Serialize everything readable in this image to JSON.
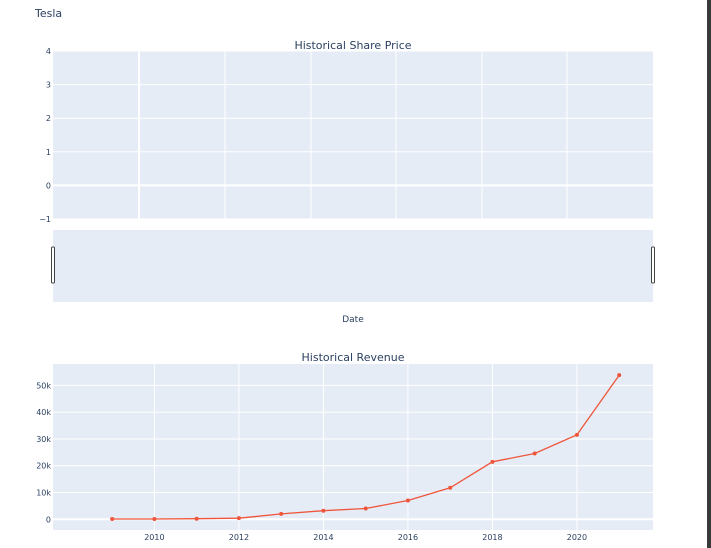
{
  "page": {
    "title": "Tesla"
  },
  "colors": {
    "plot_bg": "#e5ecf6",
    "grid": "#ffffff",
    "series": "#ef553b",
    "text": "#2a3f5f"
  },
  "chart_data": [
    {
      "type": "line",
      "title": "Historical Share Price",
      "xlabel": "Date",
      "ylabel": "",
      "ylim": [
        -1,
        4
      ],
      "yticks": [
        4,
        3,
        2,
        1,
        0
      ],
      "ytick_neg_label": "−1",
      "x": [],
      "series": [],
      "range_slider": true,
      "grid": true
    },
    {
      "type": "line",
      "title": "Historical Revenue",
      "xlabel": "",
      "ylabel": "",
      "xlim": [
        2007.6,
        2021.8
      ],
      "ylim": [
        -4000,
        58000
      ],
      "xticks": [
        "2010",
        "2012",
        "2014",
        "2016",
        "2018",
        "2020"
      ],
      "yticks": [
        "50k",
        "40k",
        "30k",
        "20k",
        "10k",
        "0"
      ],
      "x": [
        2009,
        2010,
        2011,
        2012,
        2013,
        2014,
        2015,
        2016,
        2017,
        2018,
        2019,
        2020,
        2021
      ],
      "series": [
        {
          "values": [
            112,
            117,
            204,
            413,
            2013,
            3198,
            4046,
            7000,
            11759,
            21461,
            24578,
            31536,
            53823
          ]
        }
      ],
      "grid": true
    }
  ]
}
